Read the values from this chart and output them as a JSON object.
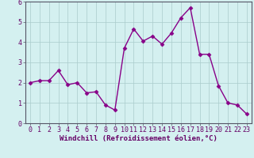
{
  "x": [
    0,
    1,
    2,
    3,
    4,
    5,
    6,
    7,
    8,
    9,
    10,
    11,
    12,
    13,
    14,
    15,
    16,
    17,
    18,
    19,
    20,
    21,
    22,
    23
  ],
  "y": [
    2.0,
    2.1,
    2.1,
    2.6,
    1.9,
    2.0,
    1.5,
    1.55,
    0.9,
    0.65,
    3.7,
    4.65,
    4.05,
    4.3,
    3.9,
    4.45,
    5.2,
    5.7,
    3.4,
    3.4,
    1.85,
    1.0,
    0.9,
    0.45
  ],
  "line_color": "#880088",
  "marker": "D",
  "markersize": 2.5,
  "linewidth": 1.0,
  "bg_color": "#d4f0f0",
  "grid_color": "#aacccc",
  "xlabel": "Windchill (Refroidissement éolien,°C)",
  "xlim": [
    -0.5,
    23.5
  ],
  "ylim": [
    0,
    6
  ],
  "yticks": [
    0,
    1,
    2,
    3,
    4,
    5,
    6
  ],
  "xticks": [
    0,
    1,
    2,
    3,
    4,
    5,
    6,
    7,
    8,
    9,
    10,
    11,
    12,
    13,
    14,
    15,
    16,
    17,
    18,
    19,
    20,
    21,
    22,
    23
  ],
  "tick_label_color": "#660066",
  "xlabel_color": "#660066",
  "xlabel_fontsize": 6.5,
  "tick_fontsize": 6,
  "spine_color": "#555566"
}
